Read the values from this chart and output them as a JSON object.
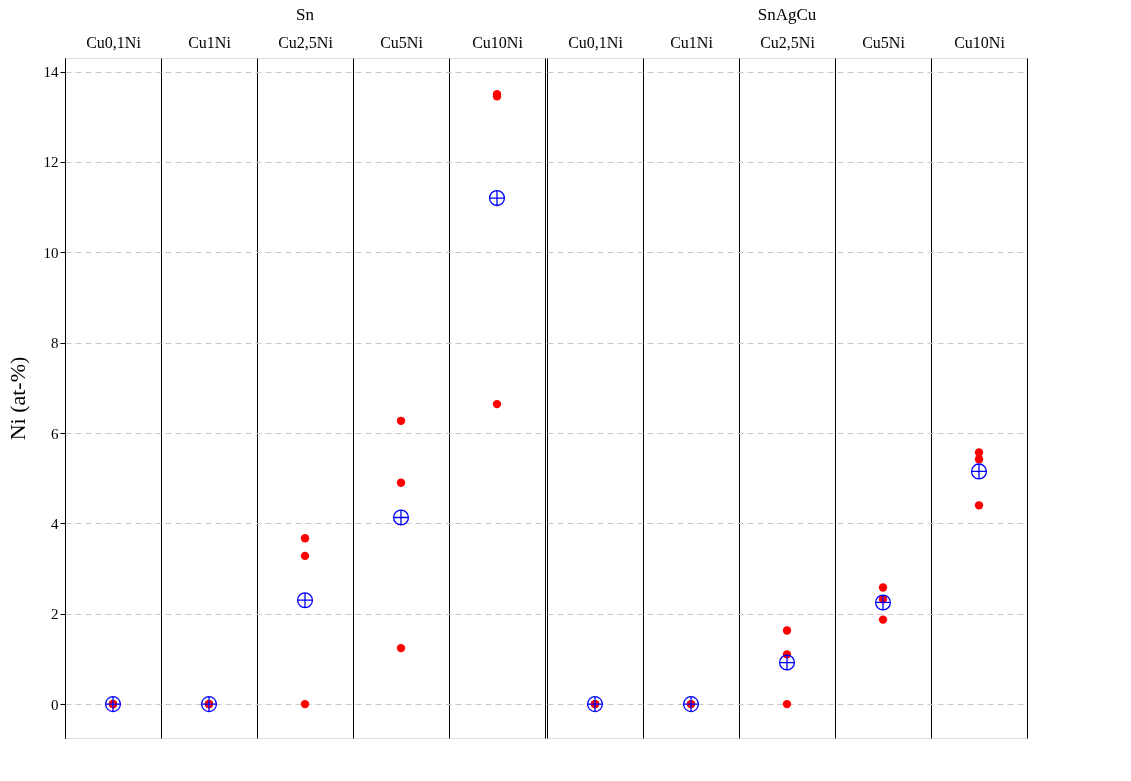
{
  "chart_data": [
    {
      "type": "scatter",
      "title": "Sn",
      "ylabel": "Ni (at-%)",
      "categories": [
        "Cu0,1Ni",
        "Cu1Ni",
        "Cu2,5Ni",
        "Cu5Ni",
        "Cu10Ni"
      ],
      "ylim": [
        -0.75,
        14.3
      ],
      "yticks": [
        0,
        2,
        4,
        6,
        8,
        10,
        12,
        14
      ],
      "grid": "y",
      "series": [
        {
          "color": "#ff0000",
          "marker": "circle",
          "x": [
            "Cu0,1Ni",
            "Cu0,1Ni",
            "Cu0,1Ni",
            "Cu1Ni",
            "Cu1Ni",
            "Cu1Ni",
            "Cu2,5Ni",
            "Cu2,5Ni",
            "Cu2,5Ni",
            "Cu5Ni",
            "Cu5Ni",
            "Cu5Ni",
            "Cu10Ni",
            "Cu10Ni",
            "Cu10Ni"
          ],
          "values": [
            0,
            0,
            0,
            0,
            0,
            0,
            3.67,
            3.28,
            0,
            4.9,
            6.27,
            1.24,
            13.5,
            13.45,
            6.64
          ]
        },
        {
          "color": "#0000ff",
          "marker": "cross",
          "x": [
            "Cu0,1Ni",
            "Cu1Ni",
            "Cu2,5Ni",
            "Cu5Ni",
            "Cu10Ni"
          ],
          "values": [
            0,
            0,
            2.3,
            4.13,
            11.2
          ]
        }
      ]
    },
    {
      "type": "scatter",
      "title": "SnAgCu",
      "categories": [
        "Cu0,1Ni",
        "Cu1Ni",
        "Cu2,5Ni",
        "Cu5Ni",
        "Cu10Ni"
      ],
      "ylim": [
        -0.75,
        14.3
      ],
      "yticks": [
        0,
        2,
        4,
        6,
        8,
        10,
        12,
        14
      ],
      "grid": "y",
      "tick_labels": "x",
      "series": [
        {
          "color": "#ff0000",
          "marker": "circle",
          "x": [
            "Cu0,1Ni",
            "Cu0,1Ni",
            "Cu0,1Ni",
            "Cu1Ni",
            "Cu1Ni",
            "Cu2,5Ni",
            "Cu2,5Ni",
            "Cu2,5Ni",
            "Cu5Ni",
            "Cu5Ni",
            "Cu5Ni",
            "Cu10Ni",
            "Cu10Ni",
            "Cu10Ni"
          ],
          "values": [
            0,
            0,
            0,
            0,
            0,
            1.63,
            1.1,
            0,
            2.58,
            2.32,
            1.87,
            5.57,
            5.42,
            4.4
          ]
        },
        {
          "color": "#0000ff",
          "marker": "cross",
          "x": [
            "Cu0,1Ni",
            "Cu1Ni",
            "Cu2,5Ni",
            "Cu5Ni",
            "Cu10Ni"
          ],
          "values": [
            0,
            0,
            0.92,
            2.25,
            5.15
          ]
        }
      ]
    }
  ]
}
